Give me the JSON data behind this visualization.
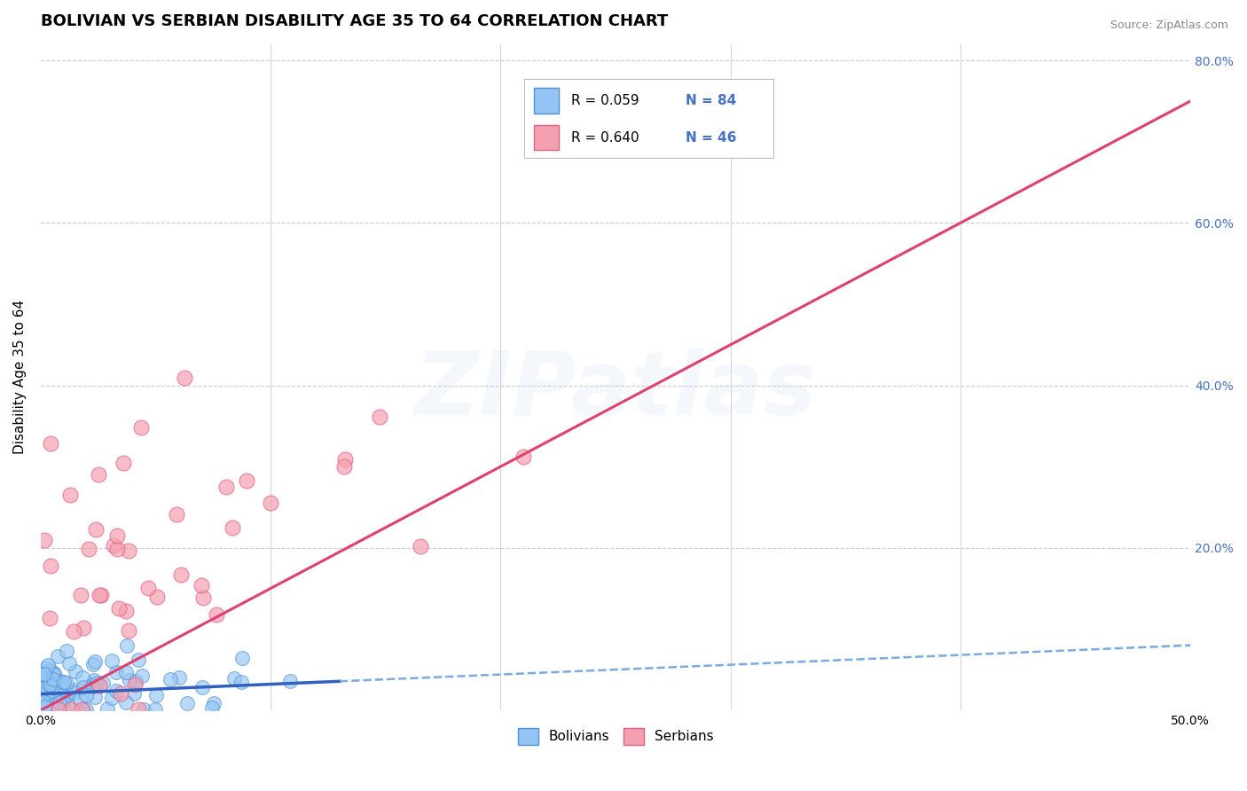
{
  "title": "BOLIVIAN VS SERBIAN DISABILITY AGE 35 TO 64 CORRELATION CHART",
  "source_text": "Source: ZipAtlas.com",
  "xlabel": "",
  "ylabel": "Disability Age 35 to 64",
  "xlim": [
    0.0,
    0.5
  ],
  "ylim": [
    0.0,
    0.82
  ],
  "xtick_labels": [
    "0.0%",
    "",
    "",
    "",
    "",
    "50.0%"
  ],
  "xtick_vals": [
    0.0,
    0.1,
    0.2,
    0.3,
    0.4,
    0.5
  ],
  "ytick_labels": [
    "20.0%",
    "40.0%",
    "60.0%",
    "80.0%"
  ],
  "ytick_vals": [
    0.2,
    0.4,
    0.6,
    0.8
  ],
  "bolivian_color": "#92C5F5",
  "serbian_color": "#F5A0B0",
  "bolivian_edge": "#5090D0",
  "serbian_edge": "#E06080",
  "trend_bolivian_solid_color": "#3060C0",
  "trend_bolivian_dash_color": "#7AAAE0",
  "trend_serbian_color": "#E04070",
  "R_bolivian": 0.059,
  "R_serbian": 0.64,
  "N_bolivian": 84,
  "N_serbian": 46,
  "legend_label_bolivian": "Bolivians",
  "legend_label_serbian": "Serbians",
  "background_color": "#FFFFFF",
  "grid_color": "#CCCCCC",
  "title_fontsize": 13,
  "axis_label_fontsize": 11,
  "tick_fontsize": 10,
  "legend_fontsize": 12,
  "watermark_text": "ZIPatlas",
  "watermark_alpha": 0.15,
  "watermark_fontsize": 72,
  "bolivian_seed": 42,
  "serbian_seed": 7,
  "trend_solid_end_x": 0.13,
  "serbian_trend_slope": 1.5,
  "serbian_trend_intercept": 0.0,
  "bolivian_trend_slope": 0.12,
  "bolivian_trend_intercept": 0.02
}
